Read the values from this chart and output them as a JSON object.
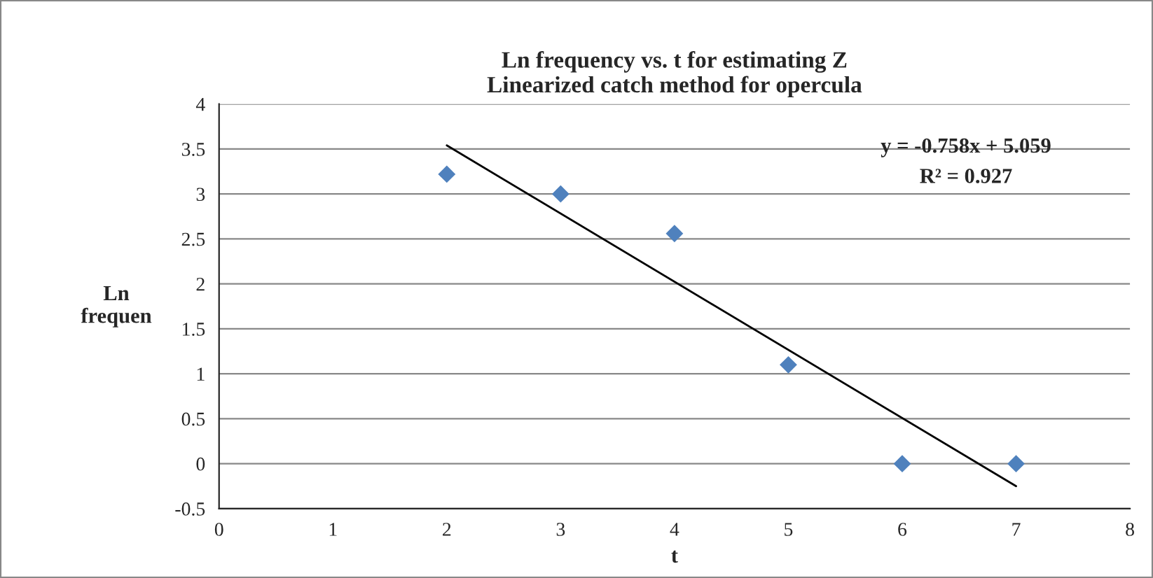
{
  "chart_data": {
    "type": "scatter",
    "title": "Ln frequency vs. t for estimating Z\nLinearized catch method for opercula",
    "xlabel": "t",
    "ylabel": "Ln\nfrequen",
    "x": [
      2,
      3,
      4,
      5,
      6,
      7
    ],
    "series": [
      {
        "color": "#4f81bd",
        "marker": "diamond",
        "values": [
          3.22,
          3.0,
          2.56,
          1.1,
          0,
          0
        ]
      },
      {
        "type": "line",
        "color": "#000000",
        "x": [
          2,
          7
        ],
        "values": [
          3.54,
          -0.25
        ],
        "marker": "none",
        "line_style": "solid"
      }
    ],
    "annotations": [
      "y = -0.758x + 5.059",
      "R² = 0.927"
    ],
    "xlim": [
      0,
      8
    ],
    "xticks": [
      0,
      1,
      2,
      3,
      4,
      5,
      6,
      7,
      8
    ],
    "ylim": [
      -0.5,
      4
    ],
    "yticks": [
      -0.5,
      0,
      0.5,
      1,
      1.5,
      2,
      2.5,
      3,
      3.5,
      4
    ],
    "grid": "y",
    "legend": false
  }
}
